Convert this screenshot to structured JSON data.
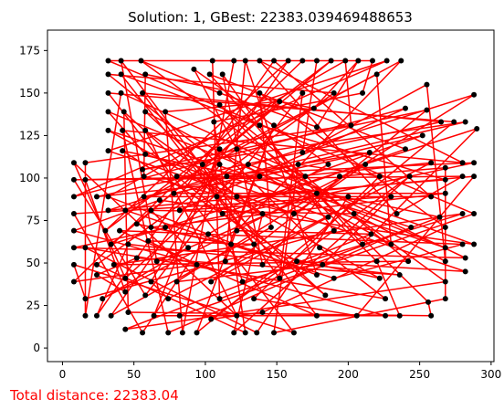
{
  "chart_data": {
    "type": "scatter",
    "title": "Solution: 1, GBest: 22383.039469488653",
    "xlabel": "",
    "ylabel": "",
    "xlim": [
      -10.5,
      302
    ],
    "ylim": [
      -8,
      187
    ],
    "xticks": [
      "0",
      "50",
      "100",
      "150",
      "200",
      "250",
      "300"
    ],
    "yticks": [
      "0",
      "25",
      "50",
      "75",
      "100",
      "125",
      "150",
      "175"
    ],
    "grid": false,
    "point_color": "#000000",
    "route_color": "#ff0000",
    "annotation": {
      "text": "Total distance: 22383.04",
      "color": "#ff0000"
    },
    "points": [
      [
        32,
        169
      ],
      [
        41,
        169
      ],
      [
        55,
        169
      ],
      [
        105,
        169
      ],
      [
        120,
        169
      ],
      [
        128,
        169
      ],
      [
        138,
        169
      ],
      [
        148,
        169
      ],
      [
        158,
        169
      ],
      [
        168,
        169
      ],
      [
        178,
        169
      ],
      [
        188,
        169
      ],
      [
        198,
        169
      ],
      [
        207,
        169
      ],
      [
        217,
        169
      ],
      [
        227,
        169
      ],
      [
        237,
        169
      ],
      [
        32,
        161
      ],
      [
        41,
        161
      ],
      [
        58,
        161
      ],
      [
        92,
        164
      ],
      [
        103,
        161
      ],
      [
        112,
        161
      ],
      [
        220,
        161
      ],
      [
        32,
        150
      ],
      [
        41,
        150
      ],
      [
        56,
        150
      ],
      [
        110,
        150
      ],
      [
        138,
        150
      ],
      [
        168,
        150
      ],
      [
        190,
        150
      ],
      [
        210,
        150
      ],
      [
        255,
        155
      ],
      [
        288,
        149
      ],
      [
        32,
        139
      ],
      [
        43,
        139
      ],
      [
        58,
        139
      ],
      [
        72,
        139
      ],
      [
        110,
        143
      ],
      [
        152,
        145
      ],
      [
        176,
        141
      ],
      [
        240,
        141
      ],
      [
        255,
        140
      ],
      [
        265,
        133
      ],
      [
        274,
        133
      ],
      [
        282,
        133
      ],
      [
        290,
        129
      ],
      [
        32,
        128
      ],
      [
        42,
        128
      ],
      [
        58,
        128
      ],
      [
        106,
        133
      ],
      [
        138,
        131
      ],
      [
        148,
        131
      ],
      [
        178,
        130
      ],
      [
        202,
        131
      ],
      [
        252,
        125
      ],
      [
        32,
        116
      ],
      [
        42,
        116
      ],
      [
        58,
        114
      ],
      [
        110,
        117
      ],
      [
        122,
        117
      ],
      [
        168,
        115
      ],
      [
        215,
        115
      ],
      [
        240,
        117
      ],
      [
        8,
        109
      ],
      [
        16,
        109
      ],
      [
        56,
        105
      ],
      [
        98,
        108
      ],
      [
        110,
        108
      ],
      [
        130,
        108
      ],
      [
        165,
        108
      ],
      [
        186,
        108
      ],
      [
        212,
        108
      ],
      [
        258,
        109
      ],
      [
        280,
        109
      ],
      [
        288,
        109
      ],
      [
        268,
        106
      ],
      [
        8,
        99
      ],
      [
        16,
        99
      ],
      [
        57,
        101
      ],
      [
        80,
        101
      ],
      [
        115,
        101
      ],
      [
        138,
        101
      ],
      [
        170,
        101
      ],
      [
        194,
        101
      ],
      [
        222,
        101
      ],
      [
        243,
        101
      ],
      [
        268,
        99
      ],
      [
        280,
        101
      ],
      [
        288,
        101
      ],
      [
        8,
        89
      ],
      [
        24,
        89
      ],
      [
        32,
        89
      ],
      [
        57,
        89
      ],
      [
        68,
        87
      ],
      [
        78,
        91
      ],
      [
        108,
        89
      ],
      [
        122,
        89
      ],
      [
        178,
        91
      ],
      [
        200,
        89
      ],
      [
        230,
        89
      ],
      [
        258,
        89
      ],
      [
        268,
        91
      ],
      [
        8,
        79
      ],
      [
        32,
        81
      ],
      [
        44,
        81
      ],
      [
        62,
        81
      ],
      [
        82,
        81
      ],
      [
        112,
        79
      ],
      [
        140,
        79
      ],
      [
        162,
        79
      ],
      [
        186,
        77
      ],
      [
        204,
        79
      ],
      [
        234,
        79
      ],
      [
        264,
        77
      ],
      [
        280,
        79
      ],
      [
        288,
        79
      ],
      [
        8,
        69
      ],
      [
        30,
        69
      ],
      [
        40,
        69
      ],
      [
        52,
        73
      ],
      [
        62,
        71
      ],
      [
        72,
        71
      ],
      [
        102,
        67
      ],
      [
        122,
        69
      ],
      [
        146,
        71
      ],
      [
        190,
        69
      ],
      [
        216,
        67
      ],
      [
        244,
        71
      ],
      [
        268,
        71
      ],
      [
        8,
        59
      ],
      [
        16,
        59
      ],
      [
        34,
        61
      ],
      [
        46,
        61
      ],
      [
        60,
        63
      ],
      [
        88,
        59
      ],
      [
        118,
        61
      ],
      [
        134,
        61
      ],
      [
        180,
        59
      ],
      [
        210,
        61
      ],
      [
        230,
        61
      ],
      [
        268,
        59
      ],
      [
        280,
        61
      ],
      [
        288,
        61
      ],
      [
        8,
        49
      ],
      [
        24,
        49
      ],
      [
        36,
        49
      ],
      [
        52,
        53
      ],
      [
        66,
        51
      ],
      [
        94,
        49
      ],
      [
        114,
        51
      ],
      [
        140,
        49
      ],
      [
        164,
        51
      ],
      [
        182,
        49
      ],
      [
        220,
        51
      ],
      [
        242,
        51
      ],
      [
        268,
        51
      ],
      [
        282,
        53
      ],
      [
        8,
        39
      ],
      [
        24,
        43
      ],
      [
        44,
        41
      ],
      [
        62,
        39
      ],
      [
        80,
        39
      ],
      [
        104,
        39
      ],
      [
        126,
        39
      ],
      [
        152,
        41
      ],
      [
        178,
        43
      ],
      [
        190,
        41
      ],
      [
        222,
        41
      ],
      [
        236,
        43
      ],
      [
        268,
        39
      ],
      [
        282,
        45
      ],
      [
        16,
        29
      ],
      [
        28,
        29
      ],
      [
        44,
        33
      ],
      [
        58,
        31
      ],
      [
        74,
        29
      ],
      [
        110,
        29
      ],
      [
        134,
        29
      ],
      [
        184,
        31
      ],
      [
        226,
        29
      ],
      [
        256,
        27
      ],
      [
        268,
        29
      ],
      [
        16,
        19
      ],
      [
        24,
        19
      ],
      [
        34,
        19
      ],
      [
        46,
        21
      ],
      [
        64,
        19
      ],
      [
        82,
        19
      ],
      [
        104,
        17
      ],
      [
        122,
        19
      ],
      [
        140,
        21
      ],
      [
        178,
        19
      ],
      [
        206,
        19
      ],
      [
        226,
        19
      ],
      [
        236,
        19
      ],
      [
        258,
        19
      ],
      [
        44,
        11
      ],
      [
        56,
        9
      ],
      [
        74,
        9
      ],
      [
        84,
        9
      ],
      [
        94,
        9
      ],
      [
        120,
        9
      ],
      [
        128,
        9
      ],
      [
        136,
        9
      ],
      [
        148,
        9
      ],
      [
        162,
        9
      ]
    ]
  }
}
